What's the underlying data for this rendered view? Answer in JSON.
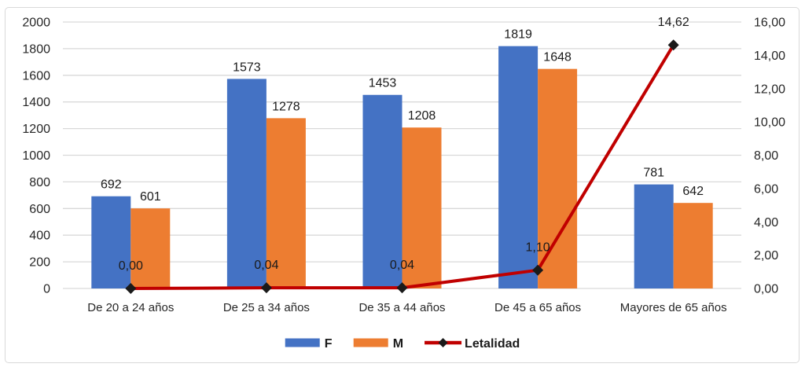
{
  "chart_data": {
    "type": "bar",
    "subtype": "grouped-bar-with-secondary-axis-line",
    "categories": [
      "De 20 a 24 años",
      "De 25 a 34 años",
      "De 35 a 44 años",
      "De 45 a 65 años",
      "Mayores de 65 años"
    ],
    "series": [
      {
        "name": "F",
        "chart": "bar",
        "color": "#4472C4",
        "axis": "primary",
        "values": [
          692,
          1573,
          1453,
          1819,
          781
        ],
        "data_labels": [
          "692",
          "1573",
          "1453",
          "1819",
          "781"
        ]
      },
      {
        "name": "M",
        "chart": "bar",
        "color": "#ED7D31",
        "axis": "primary",
        "values": [
          601,
          1278,
          1208,
          1648,
          642
        ],
        "data_labels": [
          "601",
          "1278",
          "1208",
          "1648",
          "642"
        ]
      },
      {
        "name": "Letalidad",
        "chart": "line",
        "color": "#C00000",
        "marker": "diamond",
        "marker_color": "#1A1A1A",
        "axis": "secondary",
        "values": [
          0.0,
          0.04,
          0.04,
          1.1,
          14.62
        ],
        "data_labels": [
          "0,00",
          "0,04",
          "0,04",
          "1,10",
          "14,62"
        ]
      }
    ],
    "primary_axis": {
      "min": 0,
      "max": 2000,
      "step": 200,
      "tick_labels": [
        "0",
        "200",
        "400",
        "600",
        "800",
        "1000",
        "1200",
        "1400",
        "1600",
        "1800",
        "2000"
      ]
    },
    "secondary_axis": {
      "min": 0,
      "max": 16,
      "step": 2,
      "tick_labels": [
        "0,00",
        "2,00",
        "4,00",
        "6,00",
        "8,00",
        "10,00",
        "12,00",
        "14,00",
        "16,00"
      ]
    },
    "grid": true,
    "legend_position": "bottom"
  },
  "colors": {
    "grid": "#D9D9D9",
    "axis_text": "#262626",
    "label_text": "#1A1A1A",
    "panel_border": "#D9D9D9",
    "background": "#FFFFFF"
  }
}
